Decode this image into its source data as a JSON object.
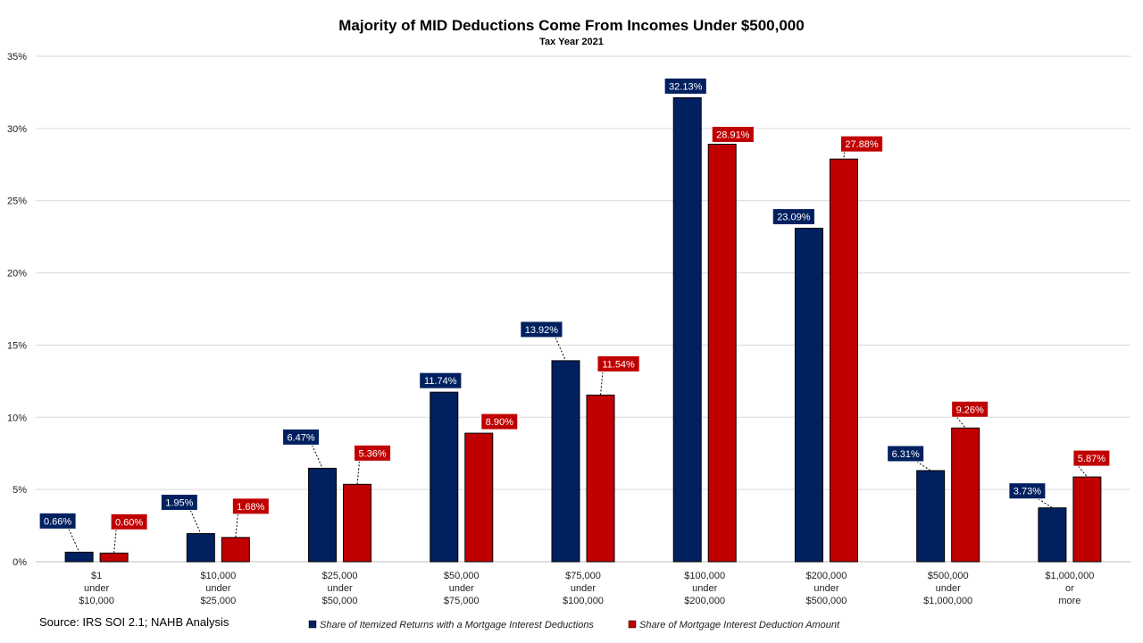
{
  "chart_data": {
    "type": "bar",
    "title": "Majority of MID Deductions Come From Incomes Under $500,000",
    "subtitle": "Tax Year 2021",
    "categories": [
      [
        "$1",
        "under",
        "$10,000"
      ],
      [
        "$10,000",
        "under",
        "$25,000"
      ],
      [
        "$25,000",
        "under",
        "$50,000"
      ],
      [
        "$50,000",
        "under",
        "$75,000"
      ],
      [
        "$75,000",
        "under",
        "$100,000"
      ],
      [
        "$100,000",
        "under",
        "$200,000"
      ],
      [
        "$200,000",
        "under",
        "$500,000"
      ],
      [
        "$500,000",
        "under",
        "$1,000,000"
      ],
      [
        "$1,000,000",
        "or",
        "more"
      ]
    ],
    "series": [
      {
        "name": "Share of Itemized Returns with a Mortgage Interest Deductions",
        "color": "#002060",
        "values": [
          0.66,
          1.95,
          6.47,
          11.74,
          13.92,
          32.13,
          23.09,
          6.31,
          3.73
        ],
        "labels": [
          "0.66%",
          "1.95%",
          "6.47%",
          "11.74%",
          "13.92%",
          "32.13%",
          "23.09%",
          "6.31%",
          "3.73%"
        ]
      },
      {
        "name": "Share of Mortgage Interest Deduction Amount",
        "color": "#C00000",
        "values": [
          0.6,
          1.68,
          5.36,
          8.9,
          11.54,
          28.91,
          27.88,
          9.26,
          5.87
        ],
        "labels": [
          "0.60%",
          "1.68%",
          "5.36%",
          "8.90%",
          "11.54%",
          "28.91%",
          "27.88%",
          "9.26%",
          "5.87%"
        ]
      }
    ],
    "ylim": [
      0,
      35
    ],
    "yticks": [
      "0%",
      "5%",
      "10%",
      "15%",
      "20%",
      "25%",
      "30%",
      "35%"
    ],
    "grid": true,
    "legend_position": "bottom",
    "source": "Source: IRS SOI 2.1; NAHB Analysis"
  }
}
